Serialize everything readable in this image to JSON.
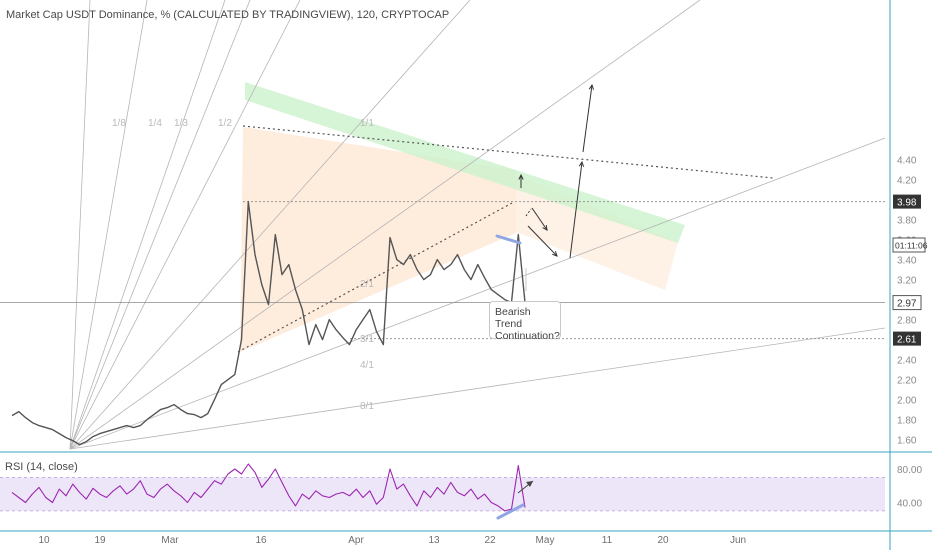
{
  "header": {
    "title": "Market Cap USDT Dominance, % (CALCULATED BY TRADINGVIEW), 120, CRYPTOCAP"
  },
  "rsi_panel": {
    "title": "RSI (14, close)",
    "ticks": [
      "80.00",
      "40.00"
    ]
  },
  "annotation": {
    "line1": "Bearish Trend",
    "line2": "Continuation?"
  },
  "fan_labels": [
    "1/8",
    "1/4",
    "1/3",
    "1/2",
    "1/1",
    "2/1",
    "3/1",
    "4/1",
    "8/1"
  ],
  "price_scale": {
    "ticks": [
      "4.40",
      "4.20",
      "3.98",
      "3.80",
      "3.60",
      "3.40",
      "3.20",
      "2.97",
      "2.80",
      "2.61",
      "2.40",
      "2.20",
      "2.00",
      "1.80",
      "1.60"
    ],
    "current_price": "2.97",
    "countdown": "01:11:06",
    "high_level": "3.98",
    "support_level": "2.61"
  },
  "time_axis": {
    "ticks": [
      "10",
      "19",
      "Mar",
      "16",
      "Apr",
      "13",
      "22",
      "May",
      "11",
      "20",
      "Jun"
    ]
  },
  "colors": {
    "price_line": "#555555",
    "rsi_line": "#9c27b0",
    "rsi_band": "#e6dcf6",
    "triangle_fill": "#fde6d2",
    "green_channel": "#ccf3cc",
    "fan_lines": "#b5b5b5",
    "trend_lines": "#c9c9c9",
    "marker": "#8fa6e3",
    "axis_separator": "#35a6c0"
  },
  "chart_data": {
    "type": "line",
    "series": [
      {
        "values": [
          1.84,
          1.88,
          1.82,
          1.77,
          1.74,
          1.72,
          1.7,
          1.66,
          1.62,
          1.59,
          1.55,
          1.58,
          1.63,
          1.66,
          1.68,
          1.7,
          1.72,
          1.74,
          1.72,
          1.74,
          1.8,
          1.85,
          1.9,
          1.92,
          1.95,
          1.9,
          1.86,
          1.85,
          1.82,
          1.86,
          2.0,
          2.15,
          2.2,
          2.25,
          2.6,
          3.98,
          3.45,
          3.15,
          2.95,
          3.65,
          3.25,
          3.35,
          3.1,
          2.9,
          2.55,
          2.75,
          2.6,
          2.8,
          2.7,
          2.62,
          2.55,
          2.7,
          2.8,
          2.9,
          2.68,
          2.55,
          3.62,
          3.4,
          3.35,
          3.45,
          3.3,
          3.2,
          3.25,
          3.4,
          3.3,
          3.35,
          3.45,
          3.3,
          3.2,
          3.35,
          3.22,
          3.1,
          3.05,
          3.0,
          2.97,
          3.65,
          2.97
        ]
      }
    ],
    "rsi": {
      "values": [
        52,
        46,
        40,
        50,
        58,
        46,
        40,
        56,
        48,
        62,
        52,
        44,
        57,
        50,
        46,
        54,
        60,
        50,
        56,
        66,
        50,
        46,
        56,
        62,
        54,
        48,
        40,
        52,
        46,
        56,
        66,
        62,
        74,
        80,
        74,
        86,
        76,
        58,
        68,
        80,
        64,
        48,
        36,
        50,
        44,
        54,
        48,
        46,
        50,
        52,
        48,
        56,
        46,
        54,
        38,
        46,
        80,
        56,
        62,
        48,
        36,
        54,
        46,
        58,
        50,
        64,
        52,
        48,
        56,
        44,
        50,
        40,
        36,
        30,
        32,
        84,
        34
      ],
      "ticks": [
        80,
        40
      ],
      "ylim": [
        25,
        90
      ]
    },
    "levels": [
      3.98,
      2.97,
      2.61
    ],
    "ylim": [
      1.5,
      4.5
    ]
  }
}
